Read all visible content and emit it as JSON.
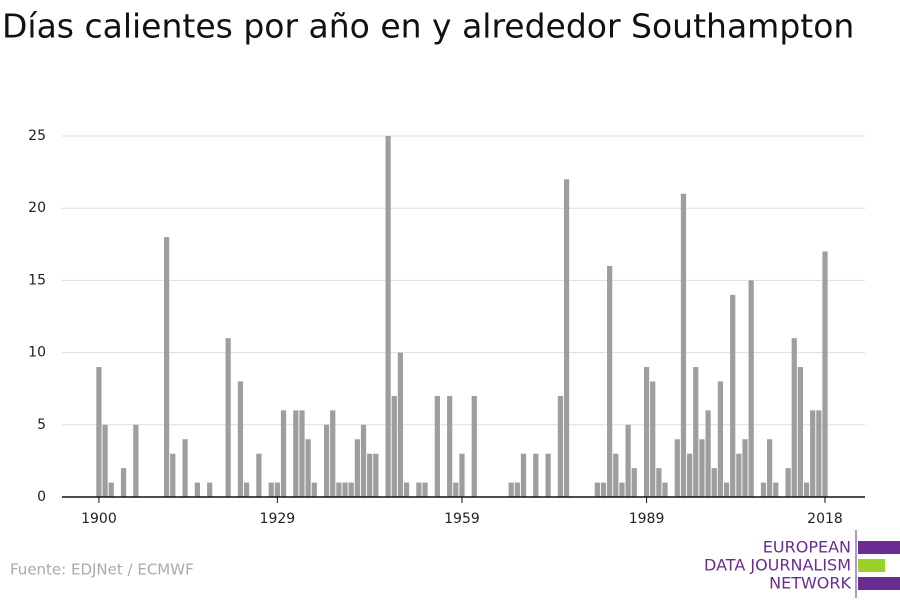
{
  "chart_data": {
    "type": "bar",
    "title": "Días calientes por año en y alrededor Southampton",
    "source": "Fuente: EDJNet / ECMWF",
    "logo": [
      "EUROPEAN",
      "DATA JOURNALISM",
      "NETWORK"
    ],
    "color": "#9e9e9e",
    "x": [
      1900,
      1901,
      1902,
      1903,
      1904,
      1905,
      1906,
      1907,
      1908,
      1909,
      1910,
      1911,
      1912,
      1913,
      1914,
      1915,
      1916,
      1917,
      1918,
      1919,
      1920,
      1921,
      1922,
      1923,
      1924,
      1925,
      1926,
      1927,
      1928,
      1929,
      1930,
      1931,
      1932,
      1933,
      1934,
      1935,
      1936,
      1937,
      1938,
      1939,
      1940,
      1941,
      1942,
      1943,
      1944,
      1945,
      1946,
      1947,
      1948,
      1949,
      1950,
      1951,
      1952,
      1953,
      1954,
      1955,
      1956,
      1957,
      1958,
      1959,
      1960,
      1961,
      1962,
      1963,
      1964,
      1965,
      1966,
      1967,
      1968,
      1969,
      1970,
      1971,
      1972,
      1973,
      1974,
      1975,
      1976,
      1977,
      1978,
      1979,
      1980,
      1981,
      1982,
      1983,
      1984,
      1985,
      1986,
      1987,
      1988,
      1989,
      1990,
      1991,
      1992,
      1993,
      1994,
      1995,
      1996,
      1997,
      1998,
      1999,
      2000,
      2001,
      2002,
      2003,
      2004,
      2005,
      2006,
      2007,
      2008,
      2009,
      2010,
      2011,
      2012,
      2013,
      2014,
      2015,
      2016,
      2017,
      2018
    ],
    "values": [
      9,
      5,
      1,
      0,
      2,
      0,
      5,
      0,
      0,
      0,
      0,
      18,
      3,
      0,
      4,
      0,
      1,
      0,
      1,
      0,
      0,
      11,
      0,
      8,
      1,
      0,
      3,
      0,
      1,
      1,
      6,
      0,
      6,
      6,
      4,
      1,
      0,
      5,
      6,
      1,
      1,
      1,
      4,
      5,
      3,
      3,
      0,
      25,
      7,
      10,
      1,
      0,
      1,
      1,
      0,
      7,
      0,
      7,
      1,
      3,
      0,
      7,
      0,
      0,
      0,
      0,
      0,
      1,
      1,
      3,
      0,
      3,
      0,
      3,
      0,
      7,
      22,
      0,
      0,
      0,
      0,
      1,
      1,
      16,
      3,
      1,
      5,
      2,
      0,
      9,
      8,
      2,
      1,
      0,
      4,
      21,
      3,
      9,
      4,
      6,
      2,
      8,
      1,
      14,
      3,
      4,
      15,
      0,
      1,
      4,
      1,
      0,
      2,
      11,
      9,
      1,
      6,
      6,
      17
    ],
    "xlim": [
      1894,
      2024.5
    ],
    "xticks": [
      1900,
      1929,
      1959,
      1989,
      2018
    ],
    "ylim": [
      0,
      25
    ],
    "yticks": [
      0,
      5,
      10,
      15,
      20,
      25
    ],
    "grid": true
  }
}
